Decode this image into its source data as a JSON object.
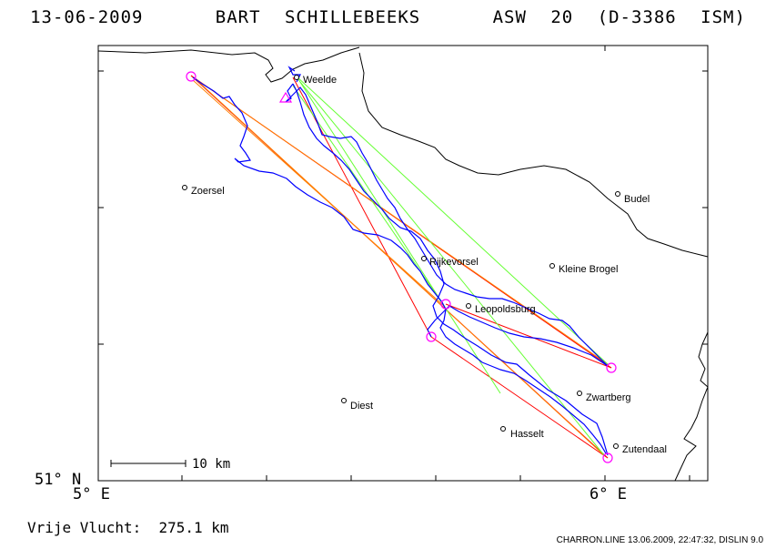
{
  "header": {
    "title": "13-06-2009   BART SCHILLEBEEKS   ASW 20 (D-3386 ISM)"
  },
  "map": {
    "axes": {
      "y_label": "51° N",
      "x_labels": [
        "5° E",
        "6° E"
      ]
    },
    "scale_bar_label": "10 km",
    "places": [
      {
        "name": "Weelde"
      },
      {
        "name": "Zoersel"
      },
      {
        "name": "Budel"
      },
      {
        "name": "Kleine Brogel"
      },
      {
        "name": "Rijkevorsel"
      },
      {
        "name": "Leopoldsburg"
      },
      {
        "name": "Zwartberg"
      },
      {
        "name": "Diest"
      },
      {
        "name": "Hasselt"
      },
      {
        "name": "Zutendaal"
      }
    ],
    "colors": {
      "track": "#0000ff",
      "task_red": "#ff0000",
      "task_orange": "#ff8000",
      "task_green": "#66ff33",
      "turnpoint": "#ff00ff",
      "border": "#000000"
    }
  },
  "summary": {
    "distance_label": "Vrije Vlucht:",
    "distance_value": "275.1 km"
  },
  "footer": {
    "credit": "CHARRON.LINE 13.06.2009, 22:47:32, DISLIN 9.0"
  }
}
